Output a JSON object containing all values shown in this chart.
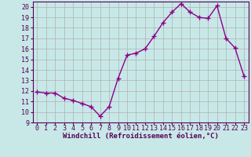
{
  "x": [
    0,
    1,
    2,
    3,
    4,
    5,
    6,
    7,
    8,
    9,
    10,
    11,
    12,
    13,
    14,
    15,
    16,
    17,
    18,
    19,
    20,
    21,
    22,
    23
  ],
  "y": [
    11.9,
    11.8,
    11.8,
    11.3,
    11.1,
    10.8,
    10.5,
    9.6,
    10.5,
    13.2,
    15.4,
    15.6,
    16.0,
    17.2,
    18.5,
    19.5,
    20.3,
    19.5,
    19.0,
    18.9,
    20.1,
    17.0,
    16.1,
    13.4
  ],
  "line_color": "#8B008B",
  "marker": "+",
  "marker_size": 4,
  "bg_color": "#c8e8e8",
  "grid_color": "#b0b0b0",
  "xlabel": "Windchill (Refroidissement éolien,°C)",
  "ylim": [
    9,
    20.5
  ],
  "xlim": [
    -0.5,
    23.5
  ],
  "yticks": [
    9,
    10,
    11,
    12,
    13,
    14,
    15,
    16,
    17,
    18,
    19,
    20
  ],
  "xticks": [
    0,
    1,
    2,
    3,
    4,
    5,
    6,
    7,
    8,
    9,
    10,
    11,
    12,
    13,
    14,
    15,
    16,
    17,
    18,
    19,
    20,
    21,
    22,
    23
  ],
  "xlabel_fontsize": 6.5,
  "tick_fontsize": 6,
  "line_width": 1.0
}
